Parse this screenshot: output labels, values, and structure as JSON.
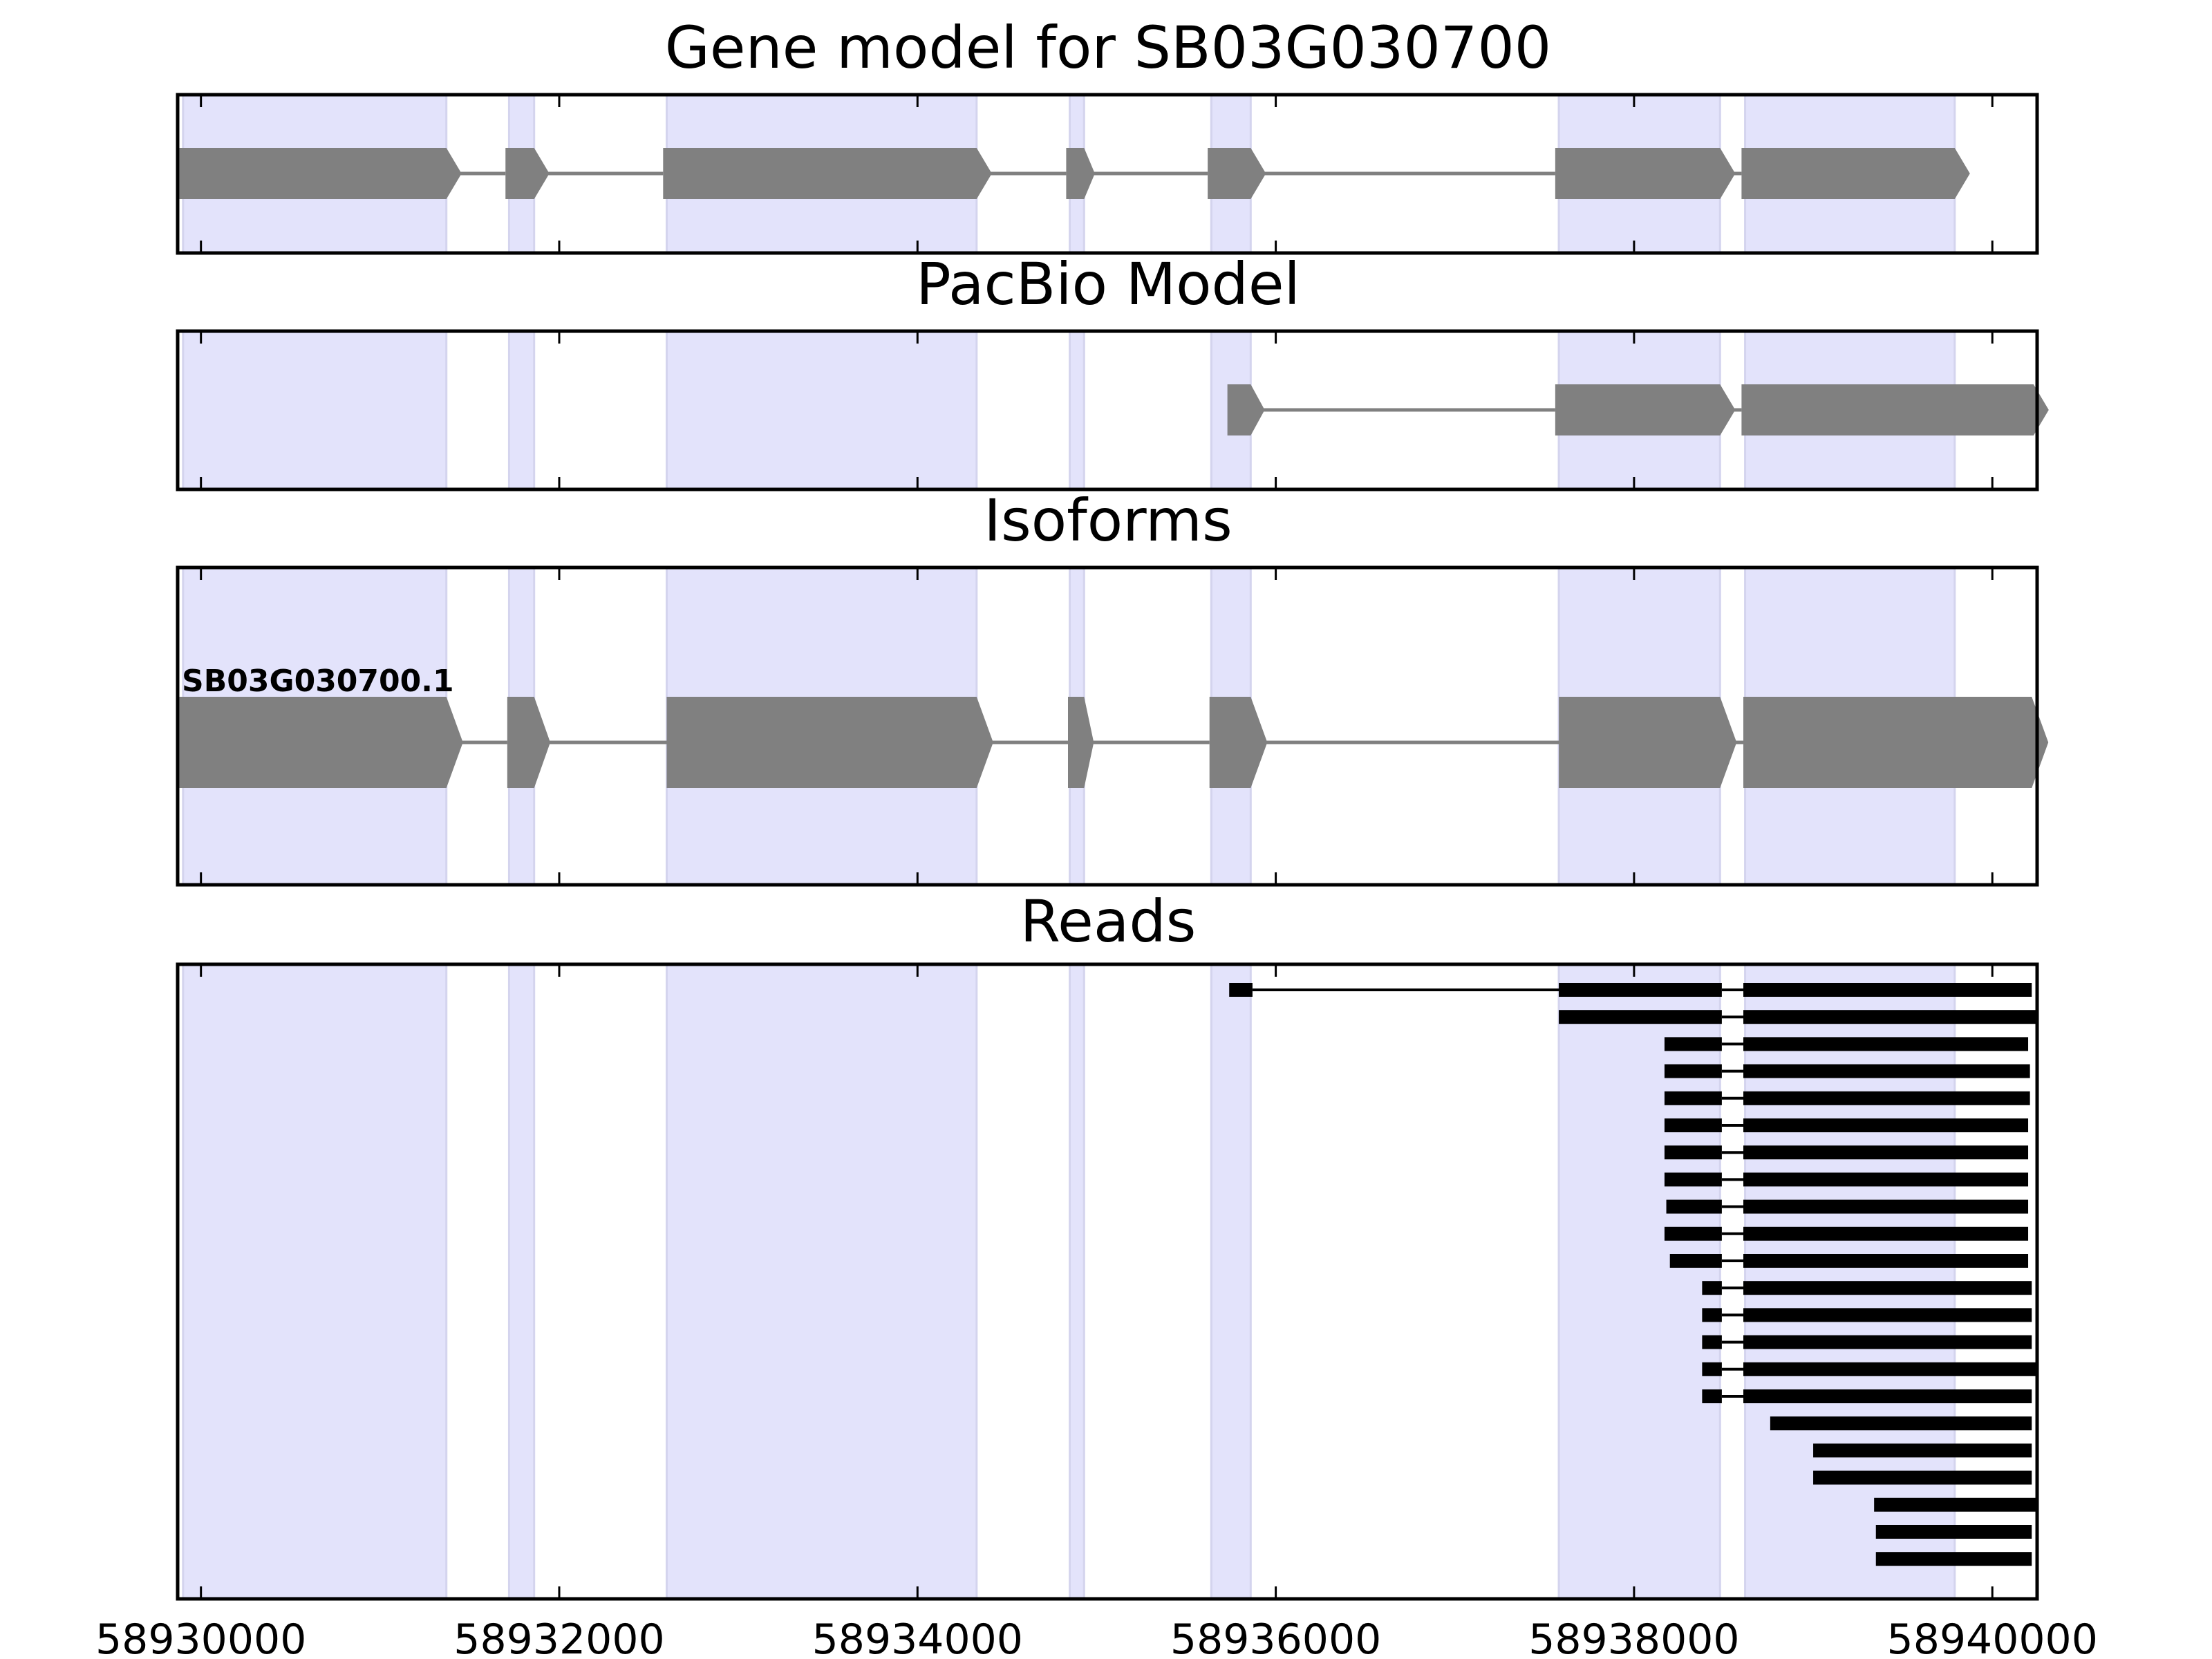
{
  "chart_data": {
    "type": "gene-track",
    "xlim": [
      58929870,
      58940250
    ],
    "x_ticks": [
      58930000,
      58932000,
      58934000,
      58936000,
      58938000,
      58940000
    ],
    "x_tick_labels": [
      "58930000",
      "58932000",
      "58934000",
      "58936000",
      "58938000",
      "58940000"
    ],
    "colors": {
      "highlight": "#e3e3fb",
      "gene_fill": "#808080",
      "intron_line": "#808080",
      "read_fill": "#000000",
      "axis": "#000000"
    },
    "exon_highlights": [
      [
        58929900,
        58931370
      ],
      [
        58931720,
        58931860
      ],
      [
        58932600,
        58934330
      ],
      [
        58934850,
        58934930
      ],
      [
        58935640,
        58935860
      ],
      [
        58937580,
        58938480
      ],
      [
        58938620,
        58939790
      ]
    ],
    "panels": [
      {
        "name": "gene-model",
        "title": "Gene model for SB03G030700",
        "kind": "model",
        "strand": "+",
        "exons": [
          [
            58929880,
            58931370
          ],
          [
            58931700,
            58931860
          ],
          [
            58932580,
            58934330
          ],
          [
            58934830,
            58934930
          ],
          [
            58935620,
            58935860
          ],
          [
            58937560,
            58938480
          ],
          [
            58938600,
            58939790
          ]
        ]
      },
      {
        "name": "pacbio-model",
        "title": "PacBio Model",
        "kind": "model",
        "strand": "+",
        "exons": [
          [
            58935730,
            58935860
          ],
          [
            58937560,
            58938480
          ],
          [
            58938600,
            58940230
          ]
        ]
      },
      {
        "name": "isoforms",
        "title": "Isoforms",
        "kind": "isoform",
        "strand": "+",
        "isoform_label": "SB03G030700.1",
        "exons": [
          [
            58929880,
            58931370
          ],
          [
            58931710,
            58931860
          ],
          [
            58932600,
            58934330
          ],
          [
            58934840,
            58934930
          ],
          [
            58935630,
            58935860
          ],
          [
            58937580,
            58938480
          ],
          [
            58938610,
            58940220
          ]
        ]
      },
      {
        "name": "reads",
        "title": "Reads",
        "kind": "reads",
        "reads": [
          [
            [
              58935740,
              58935870
            ],
            [
              58937580,
              58938490
            ],
            [
              58938610,
              58940220
            ]
          ],
          [
            [
              58937580,
              58938490
            ],
            [
              58938610,
              58940250
            ]
          ],
          [
            [
              58938170,
              58938490
            ],
            [
              58938610,
              58940200
            ]
          ],
          [
            [
              58938170,
              58938490
            ],
            [
              58938610,
              58940210
            ]
          ],
          [
            [
              58938170,
              58938490
            ],
            [
              58938610,
              58940210
            ]
          ],
          [
            [
              58938170,
              58938490
            ],
            [
              58938610,
              58940200
            ]
          ],
          [
            [
              58938170,
              58938490
            ],
            [
              58938610,
              58940200
            ]
          ],
          [
            [
              58938170,
              58938490
            ],
            [
              58938610,
              58940200
            ]
          ],
          [
            [
              58938180,
              58938490
            ],
            [
              58938610,
              58940200
            ]
          ],
          [
            [
              58938170,
              58938490
            ],
            [
              58938610,
              58940200
            ]
          ],
          [
            [
              58938200,
              58938490
            ],
            [
              58938610,
              58940200
            ]
          ],
          [
            [
              58938380,
              58938490
            ],
            [
              58938610,
              58940220
            ]
          ],
          [
            [
              58938380,
              58938490
            ],
            [
              58938610,
              58940220
            ]
          ],
          [
            [
              58938380,
              58938490
            ],
            [
              58938610,
              58940220
            ]
          ],
          [
            [
              58938380,
              58938490
            ],
            [
              58938610,
              58940250
            ]
          ],
          [
            [
              58938380,
              58938490
            ],
            [
              58938610,
              58940220
            ]
          ],
          [
            [
              58938760,
              58940220
            ]
          ],
          [
            [
              58939000,
              58940220
            ]
          ],
          [
            [
              58939000,
              58940220
            ]
          ],
          [
            [
              58939340,
              58940250
            ]
          ],
          [
            [
              58939350,
              58940220
            ]
          ],
          [
            [
              58939350,
              58940220
            ]
          ]
        ]
      }
    ]
  }
}
